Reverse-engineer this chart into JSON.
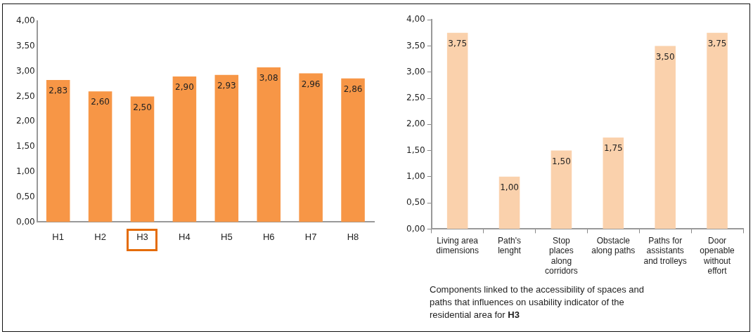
{
  "chart_data": [
    {
      "type": "bar",
      "categories": [
        "H1",
        "H2",
        "H3",
        "H4",
        "H5",
        "H6",
        "H7",
        "H8"
      ],
      "values": [
        2.83,
        2.6,
        2.5,
        2.9,
        2.93,
        3.08,
        2.96,
        2.86
      ],
      "value_labels": [
        "2,83",
        "2,60",
        "2,50",
        "2,90",
        "2,93",
        "3,08",
        "2,96",
        "2,86"
      ],
      "color": "#f79646",
      "ylim": [
        0,
        4
      ],
      "yticks": [
        {
          "value": 0,
          "label": "0,00"
        },
        {
          "value": 0.5,
          "label": "0,50"
        },
        {
          "value": 1,
          "label": "1,00"
        },
        {
          "value": 1.5,
          "label": "1,50"
        },
        {
          "value": 2,
          "label": "2,00"
        },
        {
          "value": 2.5,
          "label": "2,50"
        },
        {
          "value": 3,
          "label": "3,00"
        },
        {
          "value": 3.5,
          "label": "3,50"
        },
        {
          "value": 4,
          "label": "4,00"
        }
      ],
      "grid": false,
      "legend": false
    },
    {
      "type": "bar",
      "categories": [
        "Living area dimensions",
        "Path's lenght",
        "Stop places along corridors",
        "Obstacle along paths",
        "Paths for assistants and trolleys",
        "Door openable without effort"
      ],
      "values": [
        3.75,
        1,
        1.5,
        1.75,
        3.5,
        3.75
      ],
      "value_labels": [
        "3,75",
        "1,00",
        "1,50",
        "1,75",
        "3,50",
        "3,75"
      ],
      "color": "#fad1ac",
      "ylim": [
        0,
        4
      ],
      "yticks": [
        {
          "value": 0,
          "label": "0,00"
        },
        {
          "value": 0.5,
          "label": "0,50"
        },
        {
          "value": 1,
          "label": "1,00"
        },
        {
          "value": 1.5,
          "label": "1,50"
        },
        {
          "value": 2,
          "label": "2,00"
        },
        {
          "value": 2.5,
          "label": "2,50"
        },
        {
          "value": 3,
          "label": "3,00"
        },
        {
          "value": 3.5,
          "label": "3,50"
        },
        {
          "value": 4,
          "label": "4,00"
        }
      ],
      "grid": false,
      "legend": false,
      "annotations": [
        "Components linked to the accessibility of spaces and paths that influences on usability indicator of the residential area for H3"
      ]
    }
  ]
}
